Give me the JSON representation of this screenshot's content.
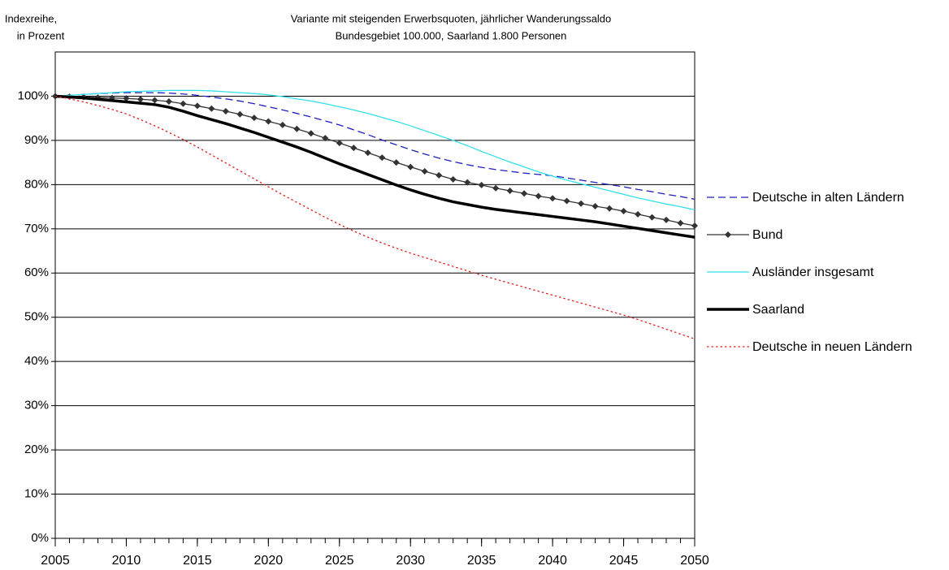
{
  "chart_data": {
    "type": "line",
    "title": [
      "Variante mit steigenden Erwerbsquoten, jährlicher Wanderungssaldo",
      "Bundesgebiet 100.000, Saarland 1.800 Personen"
    ],
    "y_label": [
      "Indexreihe,",
      "in Prozent"
    ],
    "x": [
      2005,
      2006,
      2007,
      2008,
      2009,
      2010,
      2011,
      2012,
      2013,
      2014,
      2015,
      2016,
      2017,
      2018,
      2019,
      2020,
      2021,
      2022,
      2023,
      2024,
      2025,
      2026,
      2027,
      2028,
      2029,
      2030,
      2031,
      2032,
      2033,
      2034,
      2035,
      2036,
      2037,
      2038,
      2039,
      2040,
      2041,
      2042,
      2043,
      2044,
      2045,
      2046,
      2047,
      2048,
      2049,
      2050
    ],
    "xlim": [
      2005,
      2050
    ],
    "xticks": [
      2005,
      2010,
      2015,
      2020,
      2025,
      2030,
      2035,
      2040,
      2045,
      2050
    ],
    "ylim": [
      0,
      110
    ],
    "yticks": [
      {
        "value": 0,
        "label": "0%"
      },
      {
        "value": 10,
        "label": "10%"
      },
      {
        "value": 20,
        "label": "20%"
      },
      {
        "value": 30,
        "label": "30%"
      },
      {
        "value": 40,
        "label": "40%"
      },
      {
        "value": 50,
        "label": "50%"
      },
      {
        "value": 60,
        "label": "60%"
      },
      {
        "value": 70,
        "label": "70%"
      },
      {
        "value": 80,
        "label": "80%"
      },
      {
        "value": 90,
        "label": "90%"
      },
      {
        "value": 100,
        "label": "100%"
      }
    ],
    "grid": true,
    "legend": "right",
    "series": [
      {
        "name": "Deutsche in alten Ländern",
        "color": "#1f1fbf",
        "line_style": "dashed",
        "values": [
          100,
          100.2,
          100.4,
          100.6,
          100.7,
          100.8,
          100.8,
          100.8,
          100.7,
          100.5,
          100.2,
          99.8,
          99.4,
          98.9,
          98.3,
          97.6,
          96.9,
          96.1,
          95.3,
          94.4,
          93.5,
          92.4,
          91.3,
          90.1,
          89.0,
          87.9,
          86.9,
          86.0,
          85.2,
          84.5,
          83.9,
          83.4,
          83.0,
          82.6,
          82.3,
          82.0,
          81.5,
          81.0,
          80.5,
          80.0,
          79.5,
          78.9,
          78.4,
          77.8,
          77.3,
          76.7
        ]
      },
      {
        "name": "Bund",
        "color": "#333333",
        "line_style": "solid",
        "marker": "diamond",
        "values": [
          100,
          99.9,
          99.8,
          99.7,
          99.6,
          99.5,
          99.3,
          99.1,
          98.8,
          98.3,
          97.8,
          97.2,
          96.6,
          95.9,
          95.1,
          94.3,
          93.5,
          92.6,
          91.6,
          90.5,
          89.4,
          88.3,
          87.2,
          86.1,
          85.0,
          84.0,
          83.0,
          82.1,
          81.2,
          80.5,
          79.9,
          79.2,
          78.6,
          78.0,
          77.4,
          76.9,
          76.3,
          75.7,
          75.1,
          74.6,
          74.0,
          73.3,
          72.6,
          72.0,
          71.3,
          70.7
        ]
      },
      {
        "name": "Ausländer insgesamt",
        "color": "#33e0ea",
        "line_style": "solid",
        "values": [
          100,
          100.2,
          100.4,
          100.6,
          100.8,
          101.0,
          101.1,
          101.2,
          101.3,
          101.3,
          101.3,
          101.2,
          101.0,
          100.8,
          100.6,
          100.3,
          99.9,
          99.4,
          98.9,
          98.3,
          97.6,
          96.9,
          96.1,
          95.2,
          94.3,
          93.3,
          92.2,
          91.1,
          90.0,
          88.8,
          87.5,
          86.3,
          85.1,
          84.0,
          82.9,
          81.9,
          81.0,
          80.2,
          79.4,
          78.6,
          77.8,
          77.0,
          76.3,
          75.6,
          75.0,
          74.3
        ]
      },
      {
        "name": "Saarland",
        "color": "#000000",
        "line_style": "thick",
        "values": [
          100,
          99.8,
          99.6,
          99.3,
          99.0,
          98.7,
          98.4,
          98.1,
          97.5,
          96.6,
          95.6,
          94.7,
          93.8,
          92.8,
          91.8,
          90.7,
          89.6,
          88.5,
          87.3,
          86.0,
          84.7,
          83.5,
          82.3,
          81.1,
          79.9,
          78.8,
          77.8,
          76.9,
          76.1,
          75.5,
          74.9,
          74.4,
          74.0,
          73.6,
          73.2,
          72.8,
          72.4,
          72.0,
          71.6,
          71.1,
          70.6,
          70.1,
          69.6,
          69.1,
          68.6,
          68.1
        ]
      },
      {
        "name": "Deutsche in neuen Ländern",
        "color": "#e02020",
        "line_style": "dotted",
        "values": [
          100,
          99.4,
          98.7,
          97.9,
          97.0,
          96.0,
          94.7,
          93.3,
          91.8,
          90.2,
          88.5,
          86.7,
          84.9,
          83.1,
          81.3,
          79.5,
          77.7,
          76.0,
          74.3,
          72.6,
          71.0,
          69.5,
          68.1,
          66.8,
          65.6,
          64.5,
          63.5,
          62.5,
          61.5,
          60.5,
          59.5,
          58.6,
          57.7,
          56.8,
          55.9,
          55.0,
          54.1,
          53.2,
          52.3,
          51.4,
          50.5,
          49.5,
          48.4,
          47.3,
          46.2,
          45.1
        ]
      }
    ]
  }
}
